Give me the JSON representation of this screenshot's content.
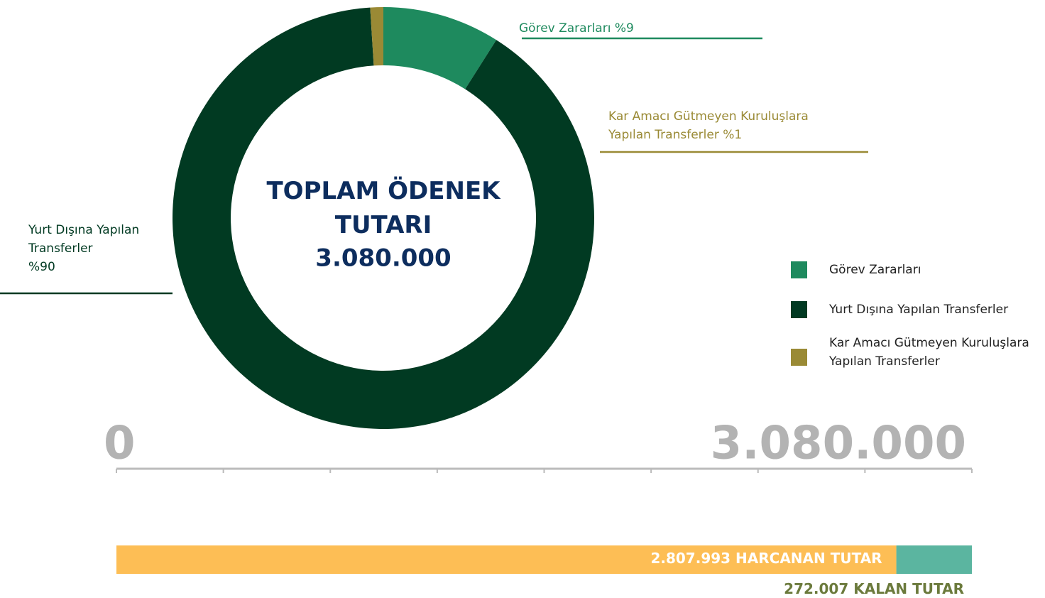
{
  "chart_data": [
    {
      "type": "donut",
      "center_label": "TOPLAM ÖDENEK TUTARI",
      "total": {
        "value": 3080000,
        "label": "3.080.000"
      },
      "categories": [
        "Görev Zararları",
        "Yurt Dışına Yapılan Transferler",
        "Kar Amacı Gütmeyen Kuruluşlara Yapılan Transferler"
      ],
      "values": [
        9,
        90,
        1
      ],
      "value_labels": [
        "%9",
        "%90",
        "%1"
      ],
      "colors": [
        "#1e8a5e",
        "#013a22",
        "#9a8a35"
      ],
      "legend": "right"
    },
    {
      "type": "progress",
      "xlim": [
        0,
        3080000
      ],
      "xticks": [
        0,
        385000,
        770000,
        1155000,
        1540000,
        1925000,
        2310000,
        2695000,
        3080000
      ],
      "xtick_labels": [
        {
          "value": 0,
          "label": "0"
        },
        {
          "value": 3080000,
          "label": "3.080.000"
        }
      ],
      "series": [
        {
          "name": "HARCANAN TUTAR",
          "value": 2807993,
          "value_label": "2.807.993",
          "color": "#fdbe55"
        },
        {
          "name": "KALAN TUTAR",
          "value": 272007,
          "value_label": "272.007",
          "color": "#5bb5a0"
        }
      ]
    }
  ]
}
